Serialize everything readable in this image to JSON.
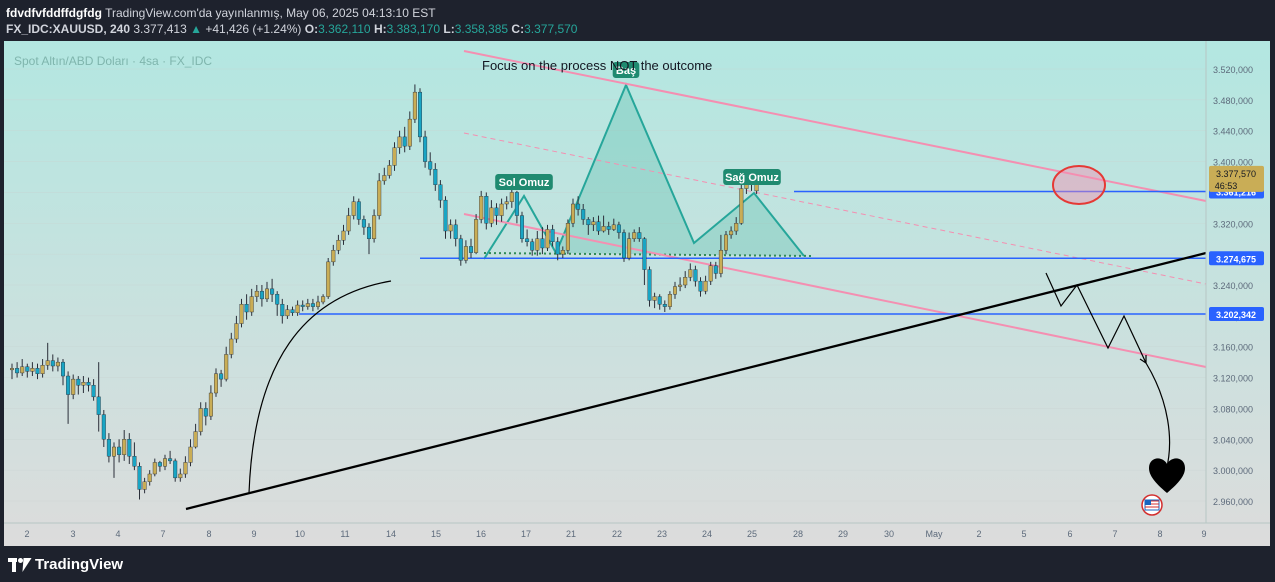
{
  "header": {
    "author": "fdvdfvfddffdgfdg",
    "published": "TradingView.com'da yayınlanmış, May 06, 2025 04:13:10 EST",
    "symbol": "FX_IDC:XAUUSD, 240",
    "price": "3.377,413",
    "change_arrow": "▲",
    "change": "+41,426 (+1.24%)",
    "o_label": "O:",
    "o_value": "3.362,110",
    "h_label": "H:",
    "h_value": "3.383,170",
    "l_label": "L:",
    "l_value": "3.358,385",
    "c_label": "C:",
    "c_value": "3.377,570"
  },
  "chart_data": {
    "type": "candlestick",
    "title": "Spot Altın/ABD Doları · 4sa · FX_IDC",
    "annotation": "Focus on the process NOT the outcome",
    "pattern_labels": {
      "left": "Sol Omuz",
      "head": "Baş",
      "right": "Sağ Omuz"
    },
    "ylim": [
      2940,
      3540
    ],
    "y_ticks": [
      2960,
      3000,
      3040,
      3080,
      3120,
      3160,
      3200,
      3240,
      3280,
      3320,
      3360,
      3400,
      3440,
      3480,
      3520
    ],
    "y_tick_labels": [
      "2.960,000",
      "3.000,000",
      "3.040,000",
      "3.080,000",
      "3.120,000",
      "3.160,000",
      "3.200,000",
      "3.240,000",
      "3.280,000",
      "3.320,000",
      "3.360,000",
      "3.400,000",
      "3.440,000",
      "3.480,000",
      "3.520,000"
    ],
    "x_tick_labels": [
      "2",
      "3",
      "4",
      "7",
      "8",
      "9",
      "10",
      "11",
      "14",
      "15",
      "16",
      "17",
      "21",
      "22",
      "23",
      "24",
      "25",
      "28",
      "29",
      "30",
      "May",
      "2",
      "5",
      "6",
      "7",
      "8",
      "9"
    ],
    "levels": [
      {
        "value": 3361.216,
        "label": "3.361,216"
      },
      {
        "value": 3274.675,
        "label": "3.274,675"
      },
      {
        "value": 3202.342,
        "label": "3.202,342"
      }
    ],
    "last_price": {
      "value": 3377.57,
      "label": "3.377,570",
      "countdown": "46:53"
    },
    "candles": [
      [
        3130,
        3132,
        3118,
        3138
      ],
      [
        3132,
        3126,
        3120,
        3140
      ],
      [
        3126,
        3134,
        3122,
        3144
      ],
      [
        3134,
        3128,
        3120,
        3138
      ],
      [
        3128,
        3132,
        3122,
        3140
      ],
      [
        3132,
        3125,
        3118,
        3138
      ],
      [
        3125,
        3136,
        3120,
        3144
      ],
      [
        3136,
        3142,
        3130,
        3165
      ],
      [
        3142,
        3135,
        3128,
        3150
      ],
      [
        3135,
        3140,
        3128,
        3146
      ],
      [
        3140,
        3122,
        3110,
        3144
      ],
      [
        3122,
        3098,
        3060,
        3128
      ],
      [
        3098,
        3118,
        3092,
        3124
      ],
      [
        3118,
        3110,
        3098,
        3122
      ],
      [
        3110,
        3114,
        3100,
        3122
      ],
      [
        3114,
        3110,
        3102,
        3120
      ],
      [
        3110,
        3095,
        3090,
        3118
      ],
      [
        3095,
        3072,
        3050,
        3140
      ],
      [
        3072,
        3040,
        3030,
        3078
      ],
      [
        3040,
        3018,
        3010,
        3048
      ],
      [
        3018,
        3030,
        2990,
        3036
      ],
      [
        3030,
        3020,
        3010,
        3040
      ],
      [
        3020,
        3040,
        3012,
        3052
      ],
      [
        3040,
        3018,
        3008,
        3048
      ],
      [
        3018,
        3005,
        3000,
        3036
      ],
      [
        3005,
        2975,
        2962,
        3010
      ],
      [
        2975,
        2985,
        2970,
        2990
      ],
      [
        2985,
        2995,
        2980,
        3000
      ],
      [
        2995,
        3010,
        2992,
        3015
      ],
      [
        3010,
        3005,
        2998,
        3012
      ],
      [
        3005,
        3015,
        3000,
        3020
      ],
      [
        3015,
        3012,
        3008,
        3025
      ],
      [
        3012,
        2990,
        2985,
        3015
      ],
      [
        2990,
        2995,
        2985,
        3002
      ],
      [
        2995,
        3010,
        2990,
        3018
      ],
      [
        3010,
        3030,
        3005,
        3040
      ],
      [
        3030,
        3050,
        3028,
        3060
      ],
      [
        3050,
        3080,
        3045,
        3088
      ],
      [
        3080,
        3070,
        3058,
        3088
      ],
      [
        3070,
        3100,
        3065,
        3110
      ],
      [
        3100,
        3125,
        3095,
        3132
      ],
      [
        3125,
        3118,
        3108,
        3130
      ],
      [
        3118,
        3150,
        3115,
        3160
      ],
      [
        3150,
        3170,
        3145,
        3178
      ],
      [
        3170,
        3190,
        3165,
        3200
      ],
      [
        3190,
        3215,
        3185,
        3222
      ],
      [
        3215,
        3205,
        3195,
        3228
      ],
      [
        3205,
        3225,
        3200,
        3235
      ],
      [
        3225,
        3232,
        3218,
        3240
      ],
      [
        3232,
        3222,
        3212,
        3240
      ],
      [
        3222,
        3235,
        3218,
        3244
      ],
      [
        3235,
        3228,
        3218,
        3248
      ],
      [
        3228,
        3215,
        3200,
        3232
      ],
      [
        3215,
        3200,
        3190,
        3222
      ],
      [
        3200,
        3208,
        3196,
        3214
      ],
      [
        3208,
        3204,
        3200,
        3212
      ],
      [
        3204,
        3214,
        3200,
        3220
      ],
      [
        3214,
        3212,
        3206,
        3220
      ],
      [
        3212,
        3216,
        3208,
        3222
      ],
      [
        3216,
        3212,
        3206,
        3222
      ],
      [
        3212,
        3218,
        3208,
        3226
      ],
      [
        3218,
        3225,
        3215,
        3228
      ],
      [
        3225,
        3270,
        3222,
        3275
      ],
      [
        3270,
        3285,
        3265,
        3292
      ],
      [
        3285,
        3298,
        3280,
        3305
      ],
      [
        3298,
        3310,
        3292,
        3318
      ],
      [
        3310,
        3330,
        3305,
        3340
      ],
      [
        3330,
        3348,
        3325,
        3355
      ],
      [
        3348,
        3325,
        3318,
        3352
      ],
      [
        3325,
        3315,
        3305,
        3330
      ],
      [
        3315,
        3300,
        3280,
        3320
      ],
      [
        3300,
        3330,
        3295,
        3338
      ],
      [
        3330,
        3375,
        3325,
        3385
      ],
      [
        3375,
        3382,
        3370,
        3392
      ],
      [
        3382,
        3395,
        3378,
        3402
      ],
      [
        3395,
        3418,
        3388,
        3425
      ],
      [
        3418,
        3432,
        3410,
        3440
      ],
      [
        3432,
        3420,
        3412,
        3445
      ],
      [
        3420,
        3455,
        3415,
        3465
      ],
      [
        3455,
        3490,
        3450,
        3500
      ],
      [
        3490,
        3432,
        3425,
        3495
      ],
      [
        3432,
        3400,
        3392,
        3440
      ],
      [
        3400,
        3390,
        3382,
        3412
      ],
      [
        3390,
        3370,
        3362,
        3398
      ],
      [
        3370,
        3350,
        3340,
        3376
      ],
      [
        3350,
        3310,
        3300,
        3355
      ],
      [
        3310,
        3318,
        3300,
        3325
      ],
      [
        3318,
        3300,
        3290,
        3325
      ],
      [
        3300,
        3272,
        3265,
        3305
      ],
      [
        3272,
        3290,
        3268,
        3298
      ],
      [
        3290,
        3282,
        3275,
        3300
      ],
      [
        3282,
        3325,
        3280,
        3332
      ],
      [
        3325,
        3355,
        3320,
        3362
      ],
      [
        3355,
        3320,
        3312,
        3360
      ],
      [
        3320,
        3340,
        3315,
        3350
      ],
      [
        3340,
        3330,
        3318,
        3346
      ],
      [
        3330,
        3345,
        3322,
        3352
      ],
      [
        3345,
        3348,
        3338,
        3355
      ],
      [
        3348,
        3360,
        3340,
        3365
      ],
      [
        3360,
        3330,
        3320,
        3362
      ],
      [
        3330,
        3300,
        3295,
        3335
      ],
      [
        3300,
        3296,
        3290,
        3312
      ],
      [
        3296,
        3285,
        3278,
        3300
      ],
      [
        3285,
        3300,
        3278,
        3310
      ],
      [
        3300,
        3288,
        3280,
        3315
      ],
      [
        3288,
        3312,
        3284,
        3318
      ],
      [
        3312,
        3296,
        3290,
        3318
      ],
      [
        3296,
        3280,
        3272,
        3302
      ],
      [
        3280,
        3285,
        3275,
        3290
      ],
      [
        3285,
        3320,
        3280,
        3325
      ],
      [
        3320,
        3345,
        3315,
        3352
      ],
      [
        3345,
        3338,
        3330,
        3355
      ],
      [
        3338,
        3325,
        3318,
        3345
      ],
      [
        3325,
        3318,
        3305,
        3328
      ],
      [
        3318,
        3322,
        3310,
        3328
      ],
      [
        3322,
        3310,
        3305,
        3330
      ],
      [
        3310,
        3316,
        3308,
        3330
      ],
      [
        3316,
        3312,
        3305,
        3322
      ],
      [
        3312,
        3318,
        3310,
        3326
      ],
      [
        3318,
        3308,
        3300,
        3322
      ],
      [
        3308,
        3275,
        3270,
        3312
      ],
      [
        3275,
        3300,
        3272,
        3308
      ],
      [
        3300,
        3308,
        3296,
        3312
      ],
      [
        3308,
        3300,
        3296,
        3315
      ],
      [
        3300,
        3260,
        3240,
        3302
      ],
      [
        3260,
        3220,
        3212,
        3264
      ],
      [
        3220,
        3225,
        3210,
        3230
      ],
      [
        3225,
        3215,
        3208,
        3228
      ],
      [
        3215,
        3212,
        3205,
        3220
      ],
      [
        3212,
        3228,
        3208,
        3232
      ],
      [
        3228,
        3238,
        3222,
        3244
      ],
      [
        3238,
        3240,
        3232,
        3250
      ],
      [
        3240,
        3250,
        3236,
        3258
      ],
      [
        3250,
        3260,
        3245,
        3268
      ],
      [
        3260,
        3245,
        3238,
        3265
      ],
      [
        3245,
        3232,
        3225,
        3250
      ],
      [
        3232,
        3245,
        3228,
        3252
      ],
      [
        3245,
        3265,
        3240,
        3270
      ],
      [
        3265,
        3255,
        3248,
        3270
      ],
      [
        3255,
        3285,
        3250,
        3305
      ],
      [
        3285,
        3305,
        3280,
        3310
      ],
      [
        3305,
        3310,
        3300,
        3316
      ],
      [
        3310,
        3320,
        3305,
        3328
      ],
      [
        3320,
        3365,
        3318,
        3370
      ],
      [
        3365,
        3383,
        3358,
        3388
      ],
      [
        3383,
        3370,
        3362,
        3390
      ],
      [
        3362,
        3378,
        3358,
        3383
      ]
    ]
  },
  "footer": {
    "brand": "TradingView"
  },
  "colors": {
    "up": "#c9ad56",
    "down": "#19a5c4",
    "level": "#2962ff",
    "channel": "#f48fb1",
    "pattern": "#26a69a",
    "bg_top": "#b3e7e1",
    "bg_bottom": "#dcdcdc",
    "grid": "#c8d4d2",
    "axis_text": "#5d6a7b"
  }
}
